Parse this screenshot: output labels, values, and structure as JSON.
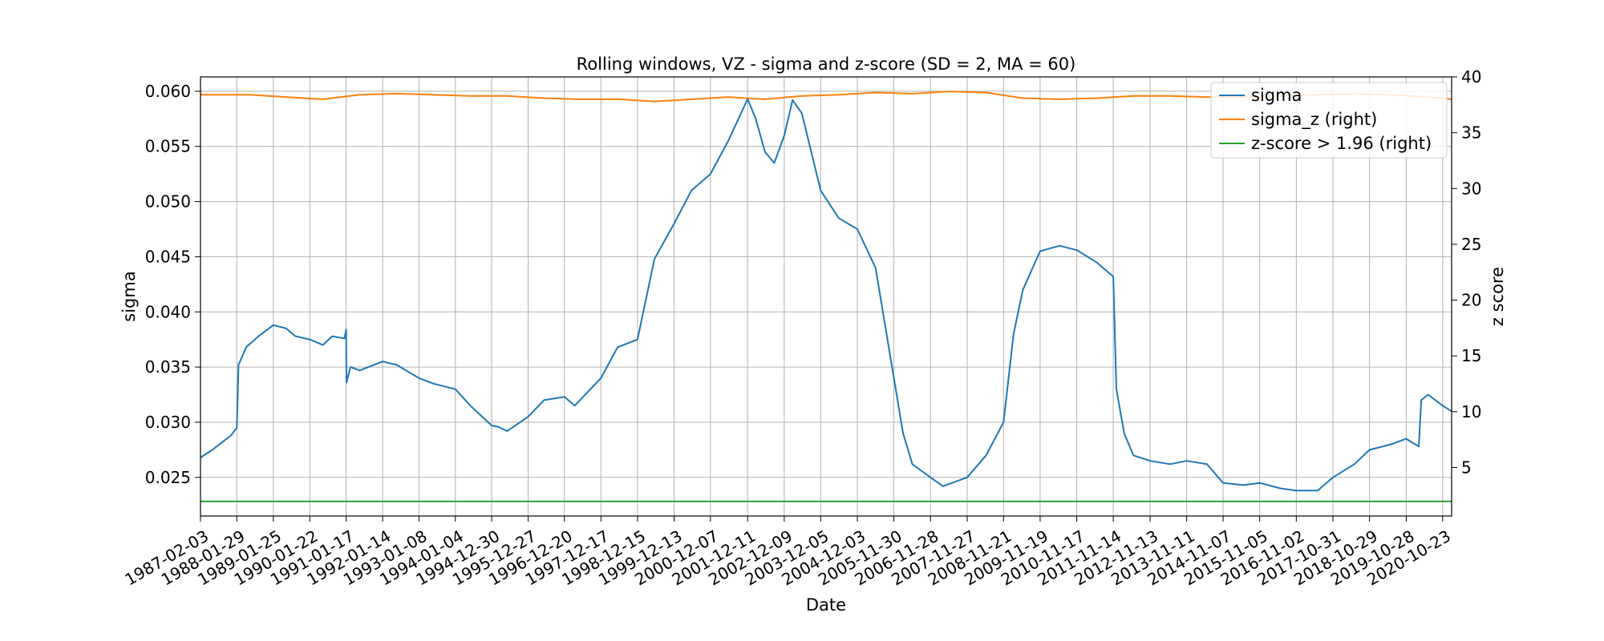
{
  "chart_data": {
    "type": "line",
    "title": "Rolling windows, VZ - sigma and z-score (SD = 2, MA = 60)",
    "xlabel": "Date",
    "ylabel": "sigma",
    "ylabel_right": "z score",
    "xlim": [
      "1987-02-03",
      "2021-01-20"
    ],
    "ylim": [
      0.0215,
      0.0613
    ],
    "ylim_right": [
      0.65,
      40.0
    ],
    "grid": true,
    "legend_position": "top-right",
    "x_tick_labels": [
      "1987-02-03",
      "1988-01-29",
      "1989-01-25",
      "1990-01-22",
      "1991-01-17",
      "1992-01-14",
      "1993-01-08",
      "1994-01-04",
      "1994-12-30",
      "1995-12-27",
      "1996-12-20",
      "1997-12-17",
      "1998-12-15",
      "1999-12-13",
      "2000-12-07",
      "2001-12-11",
      "2002-12-09",
      "2003-12-05",
      "2004-12-03",
      "2005-11-30",
      "2006-11-28",
      "2007-11-27",
      "2008-11-21",
      "2009-11-19",
      "2010-11-17",
      "2011-11-14",
      "2012-11-13",
      "2013-11-11",
      "2014-11-07",
      "2015-11-05",
      "2016-11-02",
      "2017-10-31",
      "2018-10-29",
      "2019-10-28",
      "2020-10-23"
    ],
    "y_ticks_left": [
      "0.025",
      "0.030",
      "0.035",
      "0.040",
      "0.045",
      "0.050",
      "0.055",
      "0.060"
    ],
    "y_ticks_right": [
      "5",
      "10",
      "15",
      "20",
      "25",
      "30",
      "35",
      "40"
    ],
    "series": [
      {
        "name": "sigma",
        "axis": "left",
        "color": "#1f77b4",
        "x": [
          "1987-02-03",
          "1987-06-01",
          "1987-12-01",
          "1988-01-29",
          "1988-02-15",
          "1988-05-01",
          "1988-09-01",
          "1989-01-25",
          "1989-06-01",
          "1989-09-01",
          "1990-01-22",
          "1990-06-01",
          "1990-09-01",
          "1991-01-01",
          "1991-01-17",
          "1991-01-20",
          "1991-03-01",
          "1991-06-01",
          "1992-01-14",
          "1992-06-01",
          "1993-01-08",
          "1993-06-01",
          "1994-01-04",
          "1994-06-01",
          "1994-12-30",
          "1995-03-01",
          "1995-06-01",
          "1995-12-27",
          "1996-06-01",
          "1996-12-20",
          "1997-04-01",
          "1997-12-17",
          "1998-06-01",
          "1998-12-15",
          "1999-06-01",
          "1999-12-13",
          "2000-06-01",
          "2000-12-07",
          "2001-06-01",
          "2001-12-11",
          "2002-03-01",
          "2002-06-01",
          "2002-09-01",
          "2002-12-09",
          "2003-03-01",
          "2003-06-01",
          "2003-12-05",
          "2004-06-01",
          "2004-12-03",
          "2005-06-01",
          "2005-11-30",
          "2006-03-01",
          "2006-06-01",
          "2006-11-28",
          "2007-04-01",
          "2007-11-27",
          "2008-06-01",
          "2008-11-21",
          "2009-03-01",
          "2009-06-01",
          "2009-11-19",
          "2010-06-01",
          "2010-11-17",
          "2011-06-01",
          "2011-11-14",
          "2011-12-15",
          "2012-03-01",
          "2012-06-01",
          "2012-11-13",
          "2013-06-01",
          "2013-11-11",
          "2014-06-01",
          "2014-11-07",
          "2015-06-01",
          "2015-11-05",
          "2016-06-01",
          "2016-11-02",
          "2017-06-01",
          "2017-10-31",
          "2018-06-01",
          "2018-10-29",
          "2019-06-01",
          "2019-10-28",
          "2020-03-01",
          "2020-03-25",
          "2020-06-01",
          "2020-10-23",
          "2021-01-20"
        ],
        "y": [
          0.0268,
          0.0275,
          0.0288,
          0.0295,
          0.0352,
          0.0368,
          0.0378,
          0.0388,
          0.0385,
          0.0378,
          0.0375,
          0.037,
          0.0378,
          0.0376,
          0.0384,
          0.0336,
          0.035,
          0.0347,
          0.0355,
          0.0352,
          0.034,
          0.0335,
          0.033,
          0.0315,
          0.0297,
          0.0296,
          0.0292,
          0.0305,
          0.032,
          0.0323,
          0.0315,
          0.034,
          0.0368,
          0.0375,
          0.0448,
          0.048,
          0.051,
          0.0525,
          0.0555,
          0.0593,
          0.0575,
          0.0545,
          0.0535,
          0.056,
          0.0592,
          0.058,
          0.051,
          0.0485,
          0.0475,
          0.044,
          0.034,
          0.029,
          0.0262,
          0.025,
          0.0242,
          0.025,
          0.027,
          0.03,
          0.038,
          0.042,
          0.0455,
          0.046,
          0.0456,
          0.0445,
          0.0432,
          0.033,
          0.029,
          0.027,
          0.0265,
          0.0262,
          0.0265,
          0.0262,
          0.0245,
          0.0243,
          0.0245,
          0.024,
          0.0238,
          0.0238,
          0.025,
          0.0262,
          0.0275,
          0.028,
          0.0285,
          0.0278,
          0.032,
          0.0325,
          0.0315,
          0.031
        ]
      },
      {
        "name": "sigma_z (right)",
        "axis": "right",
        "color": "#ff7f0e",
        "x": [
          "1987-02-03",
          "1988-06-01",
          "1989-06-01",
          "1990-06-01",
          "1991-06-01",
          "1992-06-01",
          "1993-06-01",
          "1994-06-01",
          "1995-06-01",
          "1996-06-01",
          "1997-06-01",
          "1998-06-01",
          "1999-06-01",
          "2000-06-01",
          "2001-06-01",
          "2002-06-01",
          "2003-06-01",
          "2004-06-01",
          "2005-06-01",
          "2006-06-01",
          "2007-06-01",
          "2008-06-01",
          "2009-06-01",
          "2010-06-01",
          "2011-06-01",
          "2012-06-01",
          "2013-06-01",
          "2014-06-01",
          "2015-06-01",
          "2016-06-01",
          "2017-06-01",
          "2018-06-01",
          "2019-06-01",
          "2020-06-01",
          "2021-01-20"
        ],
        "y": [
          38.4,
          38.4,
          38.2,
          38.0,
          38.4,
          38.5,
          38.4,
          38.3,
          38.3,
          38.1,
          38.0,
          38.0,
          37.8,
          38.0,
          38.2,
          38.0,
          38.3,
          38.4,
          38.6,
          38.5,
          38.7,
          38.6,
          38.1,
          38.0,
          38.1,
          38.3,
          38.3,
          38.2,
          38.2,
          38.3,
          38.4,
          38.5,
          38.4,
          38.2,
          38.0
        ]
      },
      {
        "name": "z-score > 1.96 (right)",
        "axis": "right",
        "color": "#2ca02c",
        "x": [
          "1987-02-03",
          "2021-01-20"
        ],
        "y": [
          1.96,
          1.96
        ]
      }
    ]
  }
}
